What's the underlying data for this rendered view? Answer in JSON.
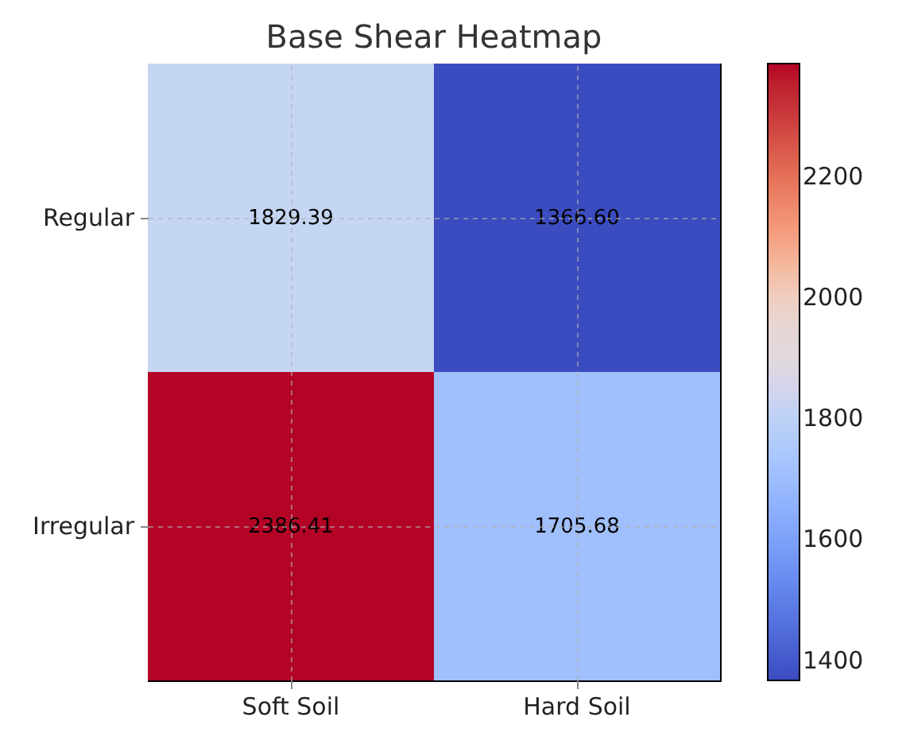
{
  "chart_data": {
    "type": "heatmap",
    "title": "Base Shear Heatmap",
    "categories": [
      "Soft Soil",
      "Hard Soil"
    ],
    "y_categories": [
      "Regular",
      "Irregular"
    ],
    "cells": [
      [
        1829.39,
        1366.6
      ],
      [
        2386.41,
        1705.68
      ]
    ],
    "cell_labels": [
      [
        "1829.39",
        "1366.60"
      ],
      [
        "2386.41",
        "1705.68"
      ]
    ],
    "clim": [
      1366.6,
      2386.41
    ],
    "cticks": [
      1400,
      1600,
      1800,
      2000,
      2200
    ],
    "grid": true
  }
}
